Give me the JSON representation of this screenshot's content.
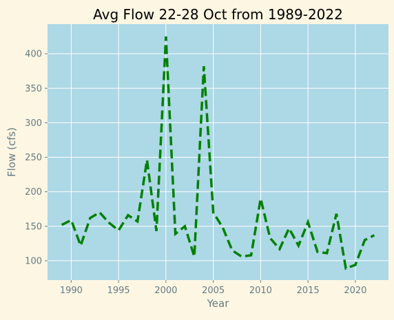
{
  "colors": {
    "background": "#fdf6e3",
    "plot_background": "#add8e6",
    "line": "#008000",
    "grid": "#ffffff",
    "text": "#657b83"
  },
  "chart_data": {
    "type": "line",
    "title": "Avg Flow 22-28 Oct from 1989-2022",
    "xlabel": "Year",
    "ylabel": "Flow (cfs)",
    "xlim": [
      1987.5,
      2023.5
    ],
    "ylim": [
      72,
      443
    ],
    "xticks": [
      1990,
      1995,
      2000,
      2005,
      2010,
      2015,
      2020
    ],
    "yticks": [
      100,
      150,
      200,
      250,
      300,
      350,
      400
    ],
    "grid": true,
    "line_style": "dashed",
    "series": [
      {
        "color": "#008000",
        "x": [
          1989,
          1990,
          1991,
          1992,
          1993,
          1994,
          1995,
          1996,
          1997,
          1998,
          1999,
          2000,
          2001,
          2002,
          2003,
          2004,
          2005,
          2006,
          2007,
          2008,
          2009,
          2010,
          2011,
          2012,
          2013,
          2014,
          2015,
          2016,
          2017,
          2018,
          2019,
          2020,
          2021,
          2022
        ],
        "y": [
          152,
          159,
          122,
          162,
          170,
          155,
          144,
          166,
          157,
          246,
          143,
          425,
          139,
          150,
          106,
          382,
          170,
          148,
          115,
          106,
          108,
          190,
          133,
          117,
          147,
          122,
          156,
          113,
          111,
          168,
          89,
          94,
          130,
          137
        ]
      }
    ]
  }
}
